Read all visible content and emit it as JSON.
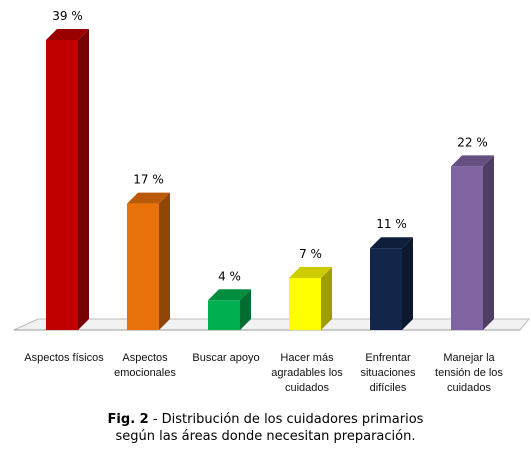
{
  "chart_data": {
    "type": "bar",
    "categories": [
      "Aspectos físicos",
      "Aspectos\nemocionales",
      "Buscar apoyo",
      "Hacer más\nagradables los\ncuidados",
      "Enfrentar\nsituaciones\ndifíciles",
      "Manejar la\ntensión de los\ncuidados"
    ],
    "values": [
      39,
      17,
      4,
      7,
      11,
      22
    ],
    "value_labels": [
      "39 %",
      "17 %",
      "4 %",
      "7 %",
      "11 %",
      "22 %"
    ],
    "colors": [
      "#c00000",
      "#e8710a",
      "#00b050",
      "#ffff00",
      "#12264a",
      "#8064a2"
    ],
    "ylim": [
      0,
      39
    ],
    "grid": false,
    "legend": "none"
  },
  "caption": {
    "fig_label": "Fig. 2",
    "text_line1": " - Distribución de los cuidadores primarios",
    "text_line2": "según las áreas donde necesitan preparación."
  }
}
